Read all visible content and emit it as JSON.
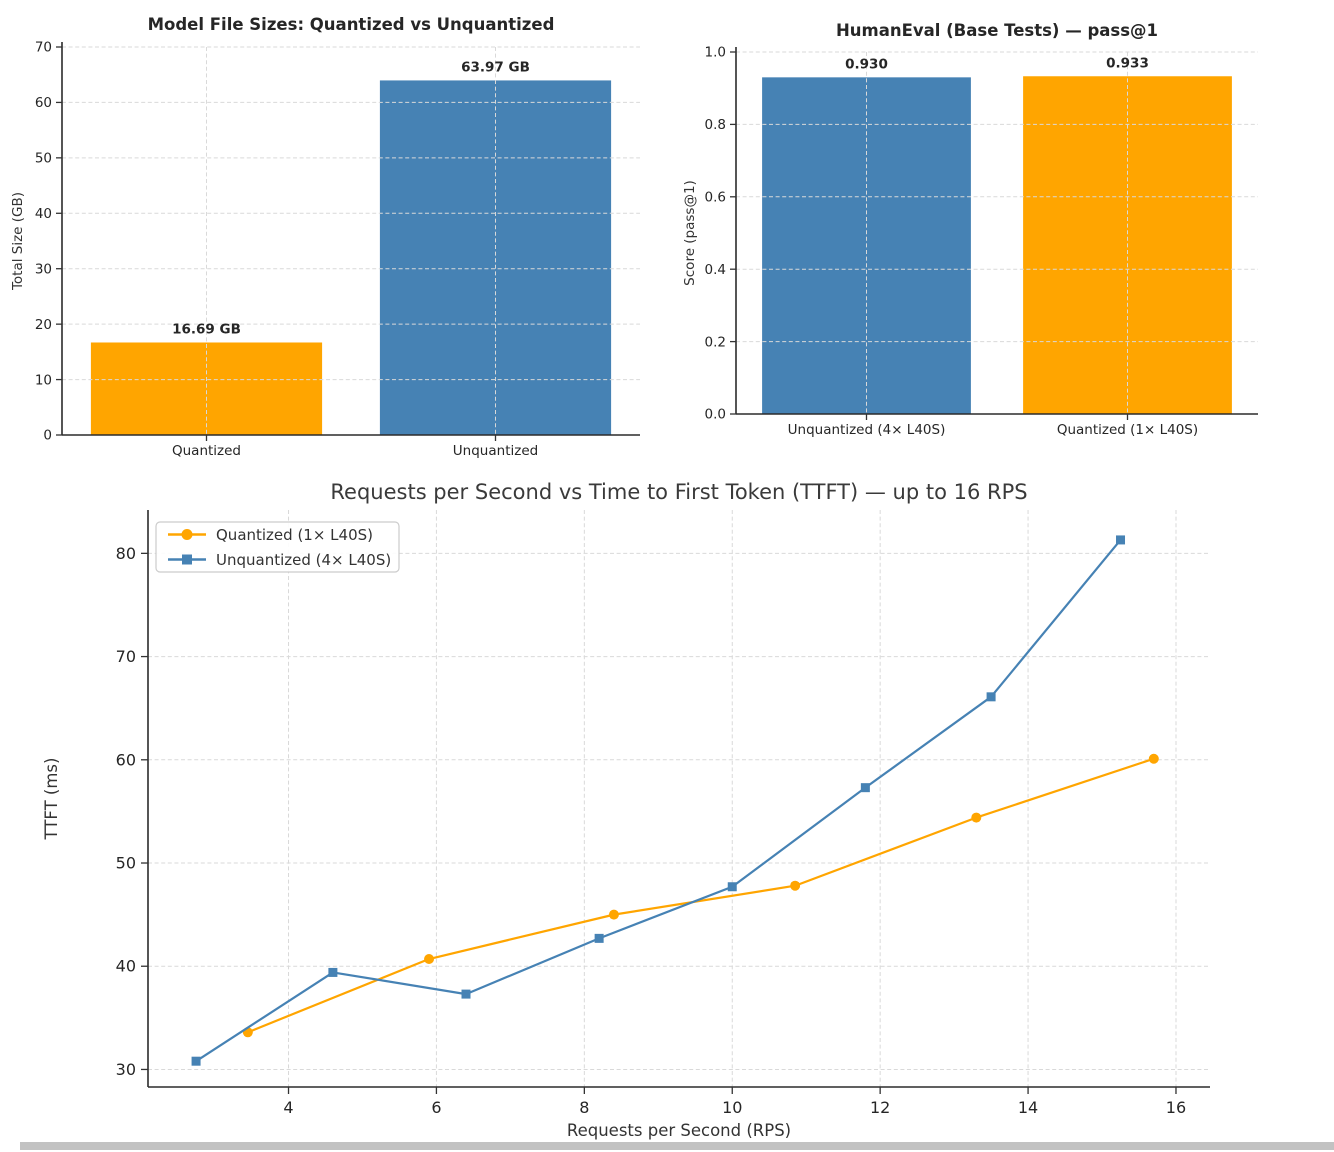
{
  "page": {
    "background": "#ffffff",
    "scrollbar_color": "#c2c2c2"
  },
  "colors": {
    "orange": "#FFA500",
    "blue": "#4682B4",
    "gridline": "#d9d9d9",
    "spine": "#2b2b2b",
    "text": "#262626"
  },
  "chart_data": [
    {
      "id": "file-sizes",
      "type": "bar",
      "title": "Model File Sizes: Quantized vs Unquantized",
      "xlabel": "",
      "ylabel": "Total Size (GB)",
      "categories": [
        "Quantized",
        "Unquantized"
      ],
      "values": [
        16.69,
        63.97
      ],
      "bar_labels": [
        "16.69 GB",
        "63.97 GB"
      ],
      "bar_colors": [
        "#FFA500",
        "#4682B4"
      ],
      "ylim": [
        0,
        70
      ],
      "yticks": [
        "0",
        "10",
        "20",
        "30",
        "40",
        "50",
        "60",
        "70"
      ],
      "grid": "both-dashed",
      "legend": null
    },
    {
      "id": "humaneval",
      "type": "bar",
      "title": "HumanEval (Base Tests) — pass@1",
      "xlabel": "",
      "ylabel": "Score (pass@1)",
      "categories": [
        "Unquantized (4× L40S)",
        "Quantized (1× L40S)"
      ],
      "values": [
        0.93,
        0.933
      ],
      "bar_labels": [
        "0.930",
        "0.933"
      ],
      "bar_colors": [
        "#4682B4",
        "#FFA500"
      ],
      "ylim": [
        0,
        1.0
      ],
      "yticks": [
        "0.0",
        "0.2",
        "0.4",
        "0.6",
        "0.8",
        "1.0"
      ],
      "grid": "both-dashed",
      "legend": null
    },
    {
      "id": "ttft",
      "type": "line",
      "title": "Requests per Second vs Time to First Token (TTFT) — up to 16 RPS",
      "xlabel": "Requests per Second (RPS)",
      "ylabel": "TTFT (ms)",
      "xlim": [
        2.1,
        16.46
      ],
      "ylim": [
        28.3,
        84.2
      ],
      "xticks": [
        "4",
        "6",
        "8",
        "10",
        "12",
        "14",
        "16"
      ],
      "yticks": [
        "30",
        "40",
        "50",
        "60",
        "70",
        "80"
      ],
      "grid": "both-dashed",
      "legend": {
        "position": "upper left",
        "entries": [
          "Quantized (1× L40S)",
          "Unquantized (4× L40S)"
        ]
      },
      "series": [
        {
          "name": "Quantized (1× L40S)",
          "color": "#FFA500",
          "marker": "circle",
          "x": [
            3.45,
            5.9,
            8.4,
            10.85,
            13.3,
            15.7
          ],
          "y": [
            33.6,
            40.7,
            45.0,
            47.8,
            54.4,
            60.1
          ]
        },
        {
          "name": "Unquantized (4× L40S)",
          "color": "#4682B4",
          "marker": "square",
          "x": [
            2.75,
            4.6,
            6.4,
            8.2,
            10.0,
            11.8,
            13.5,
            15.25
          ],
          "y": [
            30.8,
            39.4,
            37.3,
            42.7,
            47.7,
            57.3,
            66.1,
            81.3
          ]
        }
      ]
    }
  ]
}
